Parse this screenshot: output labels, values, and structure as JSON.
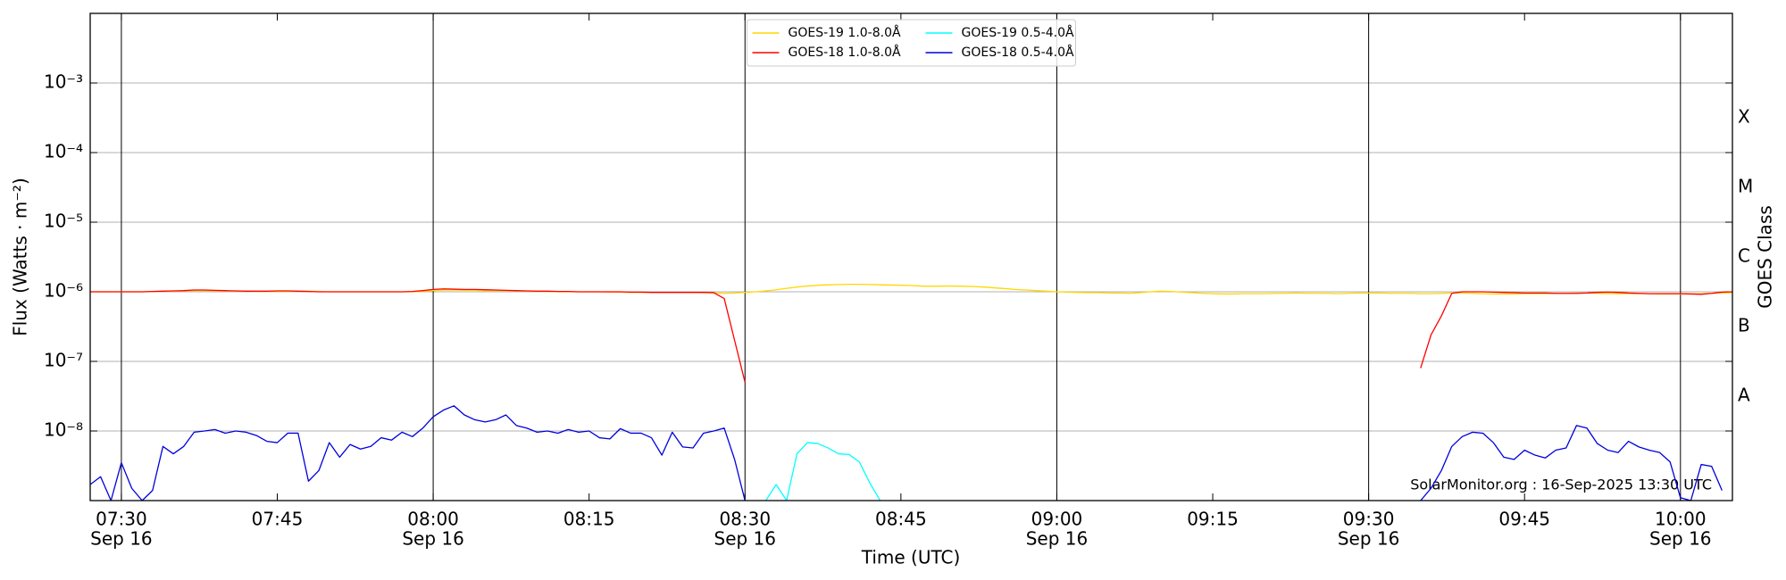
{
  "chart_data": {
    "type": "line",
    "xlabel": "Time (UTC)",
    "ylabel": "Flux (Watts · m⁻²)",
    "y2label": "GOES Class",
    "annotation": "SolarMonitor.org : 16-Sep-2025 13:30 UTC",
    "ylog": true,
    "grid": true,
    "major_tick_lines": true,
    "legend": "upper center",
    "xlim": [
      "07:27",
      "10:05"
    ],
    "ylim": [
      1e-09,
      0.01
    ],
    "y2lim": [
      1e-09,
      0.01
    ],
    "xticks": [
      {
        "value": "07:30",
        "label": [
          "07:30",
          "Sep 16"
        ]
      },
      {
        "value": "07:45",
        "label": [
          "07:45"
        ]
      },
      {
        "value": "08:00",
        "label": [
          "08:00",
          "Sep 16"
        ]
      },
      {
        "value": "08:15",
        "label": [
          "08:15"
        ]
      },
      {
        "value": "08:30",
        "label": [
          "08:30",
          "Sep 16"
        ]
      },
      {
        "value": "08:45",
        "label": [
          "08:45"
        ]
      },
      {
        "value": "09:00",
        "label": [
          "09:00",
          "Sep 16"
        ]
      },
      {
        "value": "09:15",
        "label": [
          "09:15"
        ]
      },
      {
        "value": "09:30",
        "label": [
          "09:30",
          "Sep 16"
        ]
      },
      {
        "value": "09:45",
        "label": [
          "09:45"
        ]
      },
      {
        "value": "10:00",
        "label": [
          "10:00",
          "Sep 16"
        ]
      }
    ],
    "yticks": [
      {
        "value": 1e-08,
        "label": "10⁻⁸"
      },
      {
        "value": 1e-07,
        "label": "10⁻⁷"
      },
      {
        "value": 1e-06,
        "label": "10⁻⁶"
      },
      {
        "value": 1e-05,
        "label": "10⁻⁵"
      },
      {
        "value": 0.0001,
        "label": "10⁻⁴"
      },
      {
        "value": 0.001,
        "label": "10⁻³"
      }
    ],
    "y2ticks": [
      {
        "value": 3.16e-08,
        "label": "A"
      },
      {
        "value": 3.16e-07,
        "label": "B"
      },
      {
        "value": 3.16e-06,
        "label": "C"
      },
      {
        "value": 3.16e-05,
        "label": "M"
      },
      {
        "value": 0.000316,
        "label": "X"
      }
    ],
    "x": [
      "07:27",
      "07:28",
      "07:29",
      "07:30",
      "07:31",
      "07:32",
      "07:33",
      "07:34",
      "07:35",
      "07:36",
      "07:37",
      "07:38",
      "07:39",
      "07:40",
      "07:41",
      "07:42",
      "07:43",
      "07:44",
      "07:45",
      "07:46",
      "07:47",
      "07:48",
      "07:49",
      "07:50",
      "07:51",
      "07:52",
      "07:53",
      "07:54",
      "07:55",
      "07:56",
      "07:57",
      "07:58",
      "07:59",
      "08:00",
      "08:01",
      "08:02",
      "08:03",
      "08:04",
      "08:05",
      "08:06",
      "08:07",
      "08:08",
      "08:09",
      "08:10",
      "08:11",
      "08:12",
      "08:13",
      "08:14",
      "08:15",
      "08:16",
      "08:17",
      "08:18",
      "08:19",
      "08:20",
      "08:21",
      "08:22",
      "08:23",
      "08:24",
      "08:25",
      "08:26",
      "08:27",
      "08:28",
      "08:29",
      "08:30",
      "08:31",
      "08:32",
      "08:33",
      "08:34",
      "08:35",
      "08:36",
      "08:37",
      "08:38",
      "08:39",
      "08:40",
      "08:41",
      "08:42",
      "08:43",
      "08:44",
      "08:45",
      "08:46",
      "08:47",
      "08:48",
      "08:49",
      "08:50",
      "08:51",
      "08:52",
      "08:53",
      "08:54",
      "08:55",
      "08:56",
      "08:57",
      "08:58",
      "08:59",
      "09:00",
      "09:01",
      "09:02",
      "09:03",
      "09:04",
      "09:05",
      "09:06",
      "09:07",
      "09:08",
      "09:09",
      "09:10",
      "09:11",
      "09:12",
      "09:13",
      "09:14",
      "09:15",
      "09:16",
      "09:17",
      "09:18",
      "09:19",
      "09:20",
      "09:21",
      "09:22",
      "09:23",
      "09:24",
      "09:25",
      "09:26",
      "09:27",
      "09:28",
      "09:29",
      "09:30",
      "09:31",
      "09:32",
      "09:33",
      "09:34",
      "09:35",
      "09:36",
      "09:37",
      "09:38",
      "09:39",
      "09:40",
      "09:41",
      "09:42",
      "09:43",
      "09:44",
      "09:45",
      "09:46",
      "09:47",
      "09:48",
      "09:49",
      "09:50",
      "09:51",
      "09:52",
      "09:53",
      "09:54",
      "09:55",
      "09:56",
      "09:57",
      "09:58",
      "09:59",
      "10:00",
      "10:01",
      "10:02",
      "10:03",
      "10:04",
      "10:05"
    ],
    "series": [
      {
        "name": "GOES-19 1.0-8.0Å",
        "color": "#ffd700",
        "values": [
          1e-06,
          1e-06,
          1e-06,
          1e-06,
          1e-06,
          1e-06,
          1.01e-06,
          1.02e-06,
          1.02e-06,
          1.03e-06,
          1.04e-06,
          1.04e-06,
          1.03e-06,
          1.03e-06,
          1.02e-06,
          1.02e-06,
          1.01e-06,
          1.01e-06,
          1.01e-06,
          1.01e-06,
          1.02e-06,
          1.02e-06,
          1.01e-06,
          1e-06,
          1e-06,
          1e-06,
          1e-06,
          1e-06,
          1e-06,
          1e-06,
          1e-06,
          1e-06,
          1.01e-06,
          1.04e-06,
          1.06e-06,
          1.06e-06,
          1.05e-06,
          1.05e-06,
          1.04e-06,
          1.04e-06,
          1.03e-06,
          1.03e-06,
          1.02e-06,
          1.01e-06,
          1.01e-06,
          1e-06,
          1e-06,
          1e-06,
          1e-06,
          1e-06,
          9.9e-07,
          9.9e-07,
          9.8e-07,
          9.8e-07,
          9.8e-07,
          9.8e-07,
          9.8e-07,
          9.8e-07,
          9.8e-07,
          9.7e-07,
          9.6e-07,
          9.5e-07,
          9.6e-07,
          9.8e-07,
          1e-06,
          1.03e-06,
          1.07e-06,
          1.12e-06,
          1.17e-06,
          1.21e-06,
          1.24e-06,
          1.26e-06,
          1.27e-06,
          1.28e-06,
          1.28e-06,
          1.27e-06,
          1.26e-06,
          1.25e-06,
          1.24e-06,
          1.23e-06,
          1.21e-06,
          1.2e-06,
          1.21e-06,
          1.21e-06,
          1.2e-06,
          1.19e-06,
          1.17e-06,
          1.14e-06,
          1.11e-06,
          1.08e-06,
          1.06e-06,
          1.04e-06,
          1.02e-06,
          1e-06,
          9.9e-07,
          9.8e-07,
          9.7e-07,
          9.7e-07,
          9.6e-07,
          9.6e-07,
          9.5e-07,
          9.7e-07,
          1e-06,
          1.02e-06,
          1.01e-06,
          9.9e-07,
          9.7e-07,
          9.5e-07,
          9.4e-07,
          9.3e-07,
          9.3e-07,
          9.4e-07,
          9.4e-07,
          9.4e-07,
          9.5e-07,
          9.5e-07,
          9.6e-07,
          9.5e-07,
          9.5e-07,
          9.5e-07,
          9.4e-07,
          9.5e-07,
          9.6e-07,
          9.6e-07,
          9.6e-07,
          9.5e-07,
          9.5e-07,
          9.5e-07,
          9.4e-07,
          9.4e-07,
          9.5e-07,
          9.6e-07,
          9.6e-07,
          9.5e-07,
          9.4e-07,
          9.3e-07,
          9.3e-07,
          9.3e-07,
          9.4e-07,
          9.4e-07,
          9.4e-07,
          9.5e-07,
          9.5e-07,
          9.6e-07,
          9.6e-07,
          9.5e-07,
          9.4e-07,
          9.4e-07,
          9.4e-07,
          9.4e-07,
          9.4e-07,
          9.3e-07,
          9.3e-07,
          9.3e-07,
          9.3e-07,
          9.4e-07,
          9.5e-07,
          9.6e-07,
          9.7e-07
        ]
      },
      {
        "name": "GOES-18 1.0-8.0Å",
        "color": "#ff0000",
        "values": [
          1e-06,
          1e-06,
          1e-06,
          1e-06,
          1e-06,
          1e-06,
          1.01e-06,
          1.02e-06,
          1.03e-06,
          1.04e-06,
          1.06e-06,
          1.06e-06,
          1.05e-06,
          1.04e-06,
          1.03e-06,
          1.02e-06,
          1.02e-06,
          1.02e-06,
          1.03e-06,
          1.03e-06,
          1.02e-06,
          1.01e-06,
          1e-06,
          1e-06,
          1e-06,
          1e-06,
          1e-06,
          1e-06,
          1e-06,
          1e-06,
          1e-06,
          1.01e-06,
          1.04e-06,
          1.08e-06,
          1.1e-06,
          1.09e-06,
          1.08e-06,
          1.08e-06,
          1.07e-06,
          1.06e-06,
          1.05e-06,
          1.04e-06,
          1.03e-06,
          1.02e-06,
          1.02e-06,
          1.01e-06,
          1.01e-06,
          1e-06,
          1e-06,
          1e-06,
          1e-06,
          1e-06,
          9.9e-07,
          9.9e-07,
          9.8e-07,
          9.8e-07,
          9.8e-07,
          9.8e-07,
          9.8e-07,
          9.8e-07,
          9.7e-07,
          8e-07,
          2e-07,
          5e-08,
          null,
          null,
          null,
          null,
          null,
          null,
          null,
          null,
          null,
          null,
          null,
          null,
          null,
          null,
          null,
          null,
          null,
          null,
          null,
          null,
          null,
          null,
          null,
          null,
          null,
          null,
          null,
          null,
          null,
          null,
          null,
          null,
          null,
          null,
          null,
          null,
          null,
          null,
          null,
          null,
          null,
          null,
          null,
          null,
          null,
          null,
          null,
          null,
          null,
          null,
          null,
          null,
          null,
          null,
          null,
          null,
          null,
          null,
          null,
          null,
          null,
          null,
          null,
          null,
          8e-08,
          2.4e-07,
          4.5e-07,
          9.5e-07,
          1e-06,
          1e-06,
          1e-06,
          9.9e-07,
          9.8e-07,
          9.7e-07,
          9.6e-07,
          9.6e-07,
          9.6e-07,
          9.5e-07,
          9.5e-07,
          9.5e-07,
          9.6e-07,
          9.8e-07,
          9.9e-07,
          9.8e-07,
          9.6e-07,
          9.5e-07,
          9.4e-07,
          9.4e-07,
          9.4e-07,
          9.4e-07,
          9.3e-07,
          9.2e-07,
          9.5e-07,
          9.9e-07,
          1e-06
        ]
      },
      {
        "name": "GOES-19 0.5-4.0Å",
        "color": "#00ffff",
        "values": [
          null,
          null,
          null,
          null,
          null,
          null,
          null,
          null,
          null,
          null,
          null,
          null,
          null,
          null,
          null,
          null,
          null,
          null,
          null,
          null,
          null,
          null,
          null,
          null,
          null,
          null,
          null,
          null,
          null,
          null,
          null,
          null,
          null,
          null,
          null,
          null,
          null,
          null,
          null,
          null,
          null,
          null,
          null,
          null,
          null,
          null,
          null,
          null,
          null,
          null,
          null,
          null,
          null,
          null,
          null,
          null,
          null,
          null,
          null,
          null,
          null,
          null,
          null,
          null,
          null,
          1e-09,
          1.7e-09,
          1e-09,
          4.7e-09,
          6.8e-09,
          6.6e-09,
          5.7e-09,
          4.7e-09,
          4.6e-09,
          3.6e-09,
          1.8e-09,
          1e-09,
          null,
          null,
          null,
          null,
          null,
          null,
          null,
          null,
          null,
          null,
          null,
          null,
          null,
          null,
          null,
          null,
          null,
          null,
          null,
          null,
          null,
          null,
          null,
          null,
          null,
          null,
          null,
          null,
          null,
          null,
          null,
          null,
          null,
          null,
          null,
          null,
          null,
          null,
          null,
          null,
          null,
          null,
          null,
          null,
          null,
          null,
          null,
          null,
          null,
          null,
          null,
          null,
          null,
          null,
          null,
          null,
          null,
          null,
          null,
          null,
          null,
          null,
          null,
          null,
          null,
          null,
          null,
          null,
          null,
          null,
          null,
          null,
          null,
          null,
          null,
          null,
          null,
          null,
          null,
          null,
          null,
          null
        ]
      },
      {
        "name": "GOES-18 0.5-4.0Å",
        "color": "#0000dd",
        "values": [
          1.7e-09,
          2.2e-09,
          1e-09,
          3.5e-09,
          1.5e-09,
          1e-09,
          1.4e-09,
          6e-09,
          4.7e-09,
          6e-09,
          9.6e-09,
          1e-08,
          1.05e-08,
          9.3e-09,
          1e-08,
          9.6e-09,
          8.6e-09,
          7.1e-09,
          6.8e-09,
          9.3e-09,
          9.3e-09,
          1.9e-09,
          2.7e-09,
          6.8e-09,
          4.2e-09,
          6.4e-09,
          5.5e-09,
          6e-09,
          8e-09,
          7.4e-09,
          9.6e-09,
          8.3e-09,
          1.1e-08,
          1.6e-08,
          2e-08,
          2.3e-08,
          1.7e-08,
          1.45e-08,
          1.35e-08,
          1.45e-08,
          1.7e-08,
          1.2e-08,
          1.1e-08,
          9.6e-09,
          1e-08,
          9.3e-09,
          1.05e-08,
          9.6e-09,
          1e-08,
          8e-09,
          7.7e-09,
          1.08e-08,
          9.3e-09,
          9.3e-09,
          8e-09,
          4.5e-09,
          9.6e-09,
          5.9e-09,
          5.7e-09,
          9.3e-09,
          1e-08,
          1.1e-08,
          3.9e-09,
          1e-09,
          null,
          null,
          null,
          null,
          null,
          null,
          null,
          null,
          null,
          null,
          null,
          null,
          null,
          null,
          null,
          null,
          null,
          null,
          null,
          null,
          null,
          null,
          null,
          null,
          null,
          null,
          null,
          null,
          null,
          null,
          null,
          null,
          null,
          null,
          null,
          null,
          null,
          null,
          null,
          null,
          null,
          null,
          null,
          null,
          null,
          null,
          null,
          null,
          null,
          null,
          null,
          null,
          null,
          null,
          null,
          null,
          null,
          null,
          null,
          null,
          null,
          null,
          null,
          null,
          1e-09,
          1.5e-09,
          2.7e-09,
          6e-09,
          8.3e-09,
          9.6e-09,
          9.3e-09,
          6.8e-09,
          4.2e-09,
          3.9e-09,
          5.3e-09,
          4.5e-09,
          4.1e-09,
          5.3e-09,
          5.7e-09,
          1.2e-08,
          1.1e-08,
          6.6e-09,
          5.3e-09,
          4.9e-09,
          7.1e-09,
          5.9e-09,
          5.3e-09,
          4.9e-09,
          3.6e-09,
          1.1e-09,
          1e-09,
          3.3e-09,
          3.1e-09,
          1.4e-09,
          null
        ]
      }
    ]
  }
}
